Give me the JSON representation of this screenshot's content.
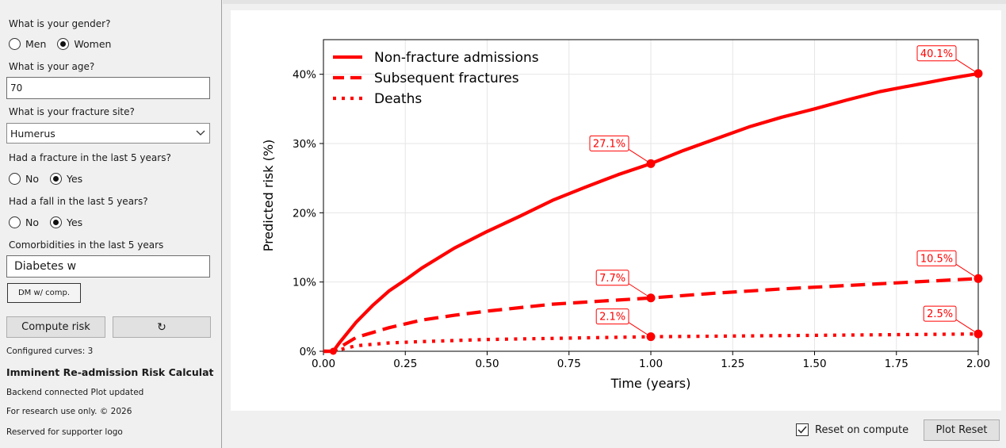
{
  "form": {
    "gender": {
      "question": "What is your gender?",
      "options": [
        "Men",
        "Women"
      ],
      "selected": "Women"
    },
    "age": {
      "question": "What is your age?",
      "value": "70"
    },
    "fracture_site": {
      "question": "What is your fracture site?",
      "value": "Humerus"
    },
    "prior_fracture": {
      "question": "Had a fracture in the last 5 years?",
      "options": [
        "No",
        "Yes"
      ],
      "selected": "Yes"
    },
    "fall": {
      "question": "Had a fall in the last 5 years?",
      "options": [
        "No",
        "Yes"
      ],
      "selected": "Yes"
    },
    "comorbidities": {
      "question": "Comorbidities in the last 5 years",
      "value": "Diabetes w",
      "chip": "DM w/ comp."
    }
  },
  "buttons": {
    "compute": "Compute risk",
    "refresh_symbol": "↻",
    "plot_reset": "Plot Reset"
  },
  "status": {
    "curves": "Configured curves: 3",
    "app_title": "Imminent Re-admission Risk Calculator",
    "backend": "Backend connected  Plot updated",
    "disclaimer": "For research use only. © 2026",
    "logo": "Reserved for supporter logo"
  },
  "reset_on_compute": {
    "label": "Reset on compute",
    "checked": true
  },
  "colors": {
    "series": "#ff0000",
    "grid": "#e6e6e6"
  },
  "chart_data": {
    "type": "line",
    "xlabel": "Time (years)",
    "ylabel": "Predicted risk (%)",
    "xlim": [
      0,
      2
    ],
    "ylim": [
      0,
      45
    ],
    "xticks": [
      "0.00",
      "0.25",
      "0.50",
      "0.75",
      "1.00",
      "1.25",
      "1.50",
      "1.75",
      "2.00"
    ],
    "yticks": [
      "0%",
      "10%",
      "20%",
      "30%",
      "40%"
    ],
    "grid": true,
    "legend_position": "top-left",
    "series": [
      {
        "name": "Non-fracture admissions",
        "style": "solid",
        "x": [
          0,
          0.03,
          0.05,
          0.1,
          0.15,
          0.2,
          0.25,
          0.3,
          0.4,
          0.5,
          0.6,
          0.7,
          0.8,
          0.9,
          1.0,
          1.1,
          1.2,
          1.3,
          1.4,
          1.5,
          1.6,
          1.7,
          1.8,
          1.9,
          2.0
        ],
        "y": [
          0,
          0,
          1.3,
          4.2,
          6.6,
          8.7,
          10.3,
          12.0,
          14.9,
          17.3,
          19.5,
          21.8,
          23.7,
          25.5,
          27.1,
          29.0,
          30.7,
          32.4,
          33.8,
          35.0,
          36.3,
          37.5,
          38.4,
          39.3,
          40.1
        ],
        "markers": [
          {
            "x": 1.0,
            "y": 27.1,
            "label": "27.1%"
          },
          {
            "x": 2.0,
            "y": 40.1,
            "label": "40.1%"
          }
        ]
      },
      {
        "name": "Subsequent fractures",
        "style": "dashed",
        "x": [
          0,
          0.03,
          0.1,
          0.2,
          0.3,
          0.4,
          0.5,
          0.6,
          0.7,
          0.8,
          0.9,
          1.0,
          1.2,
          1.4,
          1.6,
          1.8,
          2.0
        ],
        "y": [
          0,
          0,
          2.0,
          3.4,
          4.5,
          5.2,
          5.8,
          6.3,
          6.8,
          7.1,
          7.4,
          7.7,
          8.4,
          9.0,
          9.5,
          10.0,
          10.5
        ],
        "markers": [
          {
            "x": 1.0,
            "y": 7.7,
            "label": "7.7%"
          },
          {
            "x": 2.0,
            "y": 10.5,
            "label": "10.5%"
          }
        ]
      },
      {
        "name": "Deaths",
        "style": "dotted",
        "x": [
          0,
          0.03,
          0.1,
          0.2,
          0.3,
          0.5,
          0.75,
          1.0,
          1.25,
          1.5,
          1.75,
          2.0
        ],
        "y": [
          0,
          0,
          0.8,
          1.2,
          1.4,
          1.7,
          1.9,
          2.1,
          2.2,
          2.3,
          2.4,
          2.5
        ],
        "markers": [
          {
            "x": 1.0,
            "y": 2.1,
            "label": "2.1%"
          },
          {
            "x": 2.0,
            "y": 2.5,
            "label": "2.5%"
          }
        ]
      }
    ]
  }
}
